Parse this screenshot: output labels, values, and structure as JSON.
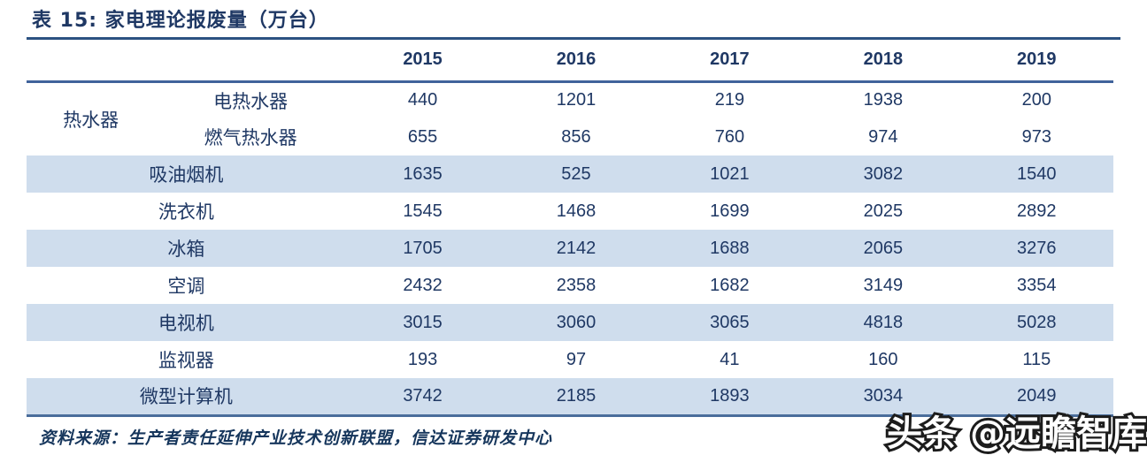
{
  "title": "表 15:  家电理论报废量（万台）",
  "table": {
    "columns": [
      "2015",
      "2016",
      "2017",
      "2018",
      "2019"
    ],
    "rows": [
      {
        "group": "热水器",
        "label": "电热水器",
        "values": [
          "440",
          "1201",
          "219",
          "1938",
          "200"
        ],
        "shaded": false
      },
      {
        "label": "燃气热水器",
        "values": [
          "655",
          "856",
          "760",
          "974",
          "973"
        ],
        "shaded": false
      },
      {
        "label": "吸油烟机",
        "values": [
          "1635",
          "525",
          "1021",
          "3082",
          "1540"
        ],
        "shaded": true
      },
      {
        "label": "洗衣机",
        "values": [
          "1545",
          "1468",
          "1699",
          "2025",
          "2892"
        ],
        "shaded": false
      },
      {
        "label": "冰箱",
        "values": [
          "1705",
          "2142",
          "1688",
          "2065",
          "3276"
        ],
        "shaded": true
      },
      {
        "label": "空调",
        "values": [
          "2432",
          "2358",
          "1682",
          "3149",
          "3354"
        ],
        "shaded": false
      },
      {
        "label": "电视机",
        "values": [
          "3015",
          "3060",
          "3065",
          "4818",
          "5028"
        ],
        "shaded": true
      },
      {
        "label": "监视器",
        "values": [
          "193",
          "97",
          "41",
          "160",
          "115"
        ],
        "shaded": false
      },
      {
        "label": "微型计算机",
        "values": [
          "3742",
          "2185",
          "1893",
          "3034",
          "2049"
        ],
        "shaded": true
      }
    ]
  },
  "footer": {
    "source": "资料来源：生产者责任延伸产业技术创新联盟，信达证券研发中心"
  },
  "watermark": {
    "text": "头条 @远瞻智库"
  },
  "colors": {
    "navy": "#1f3864",
    "band": "#cfdded",
    "rule": "#4a6d9b",
    "header_rule": "#40639b"
  }
}
